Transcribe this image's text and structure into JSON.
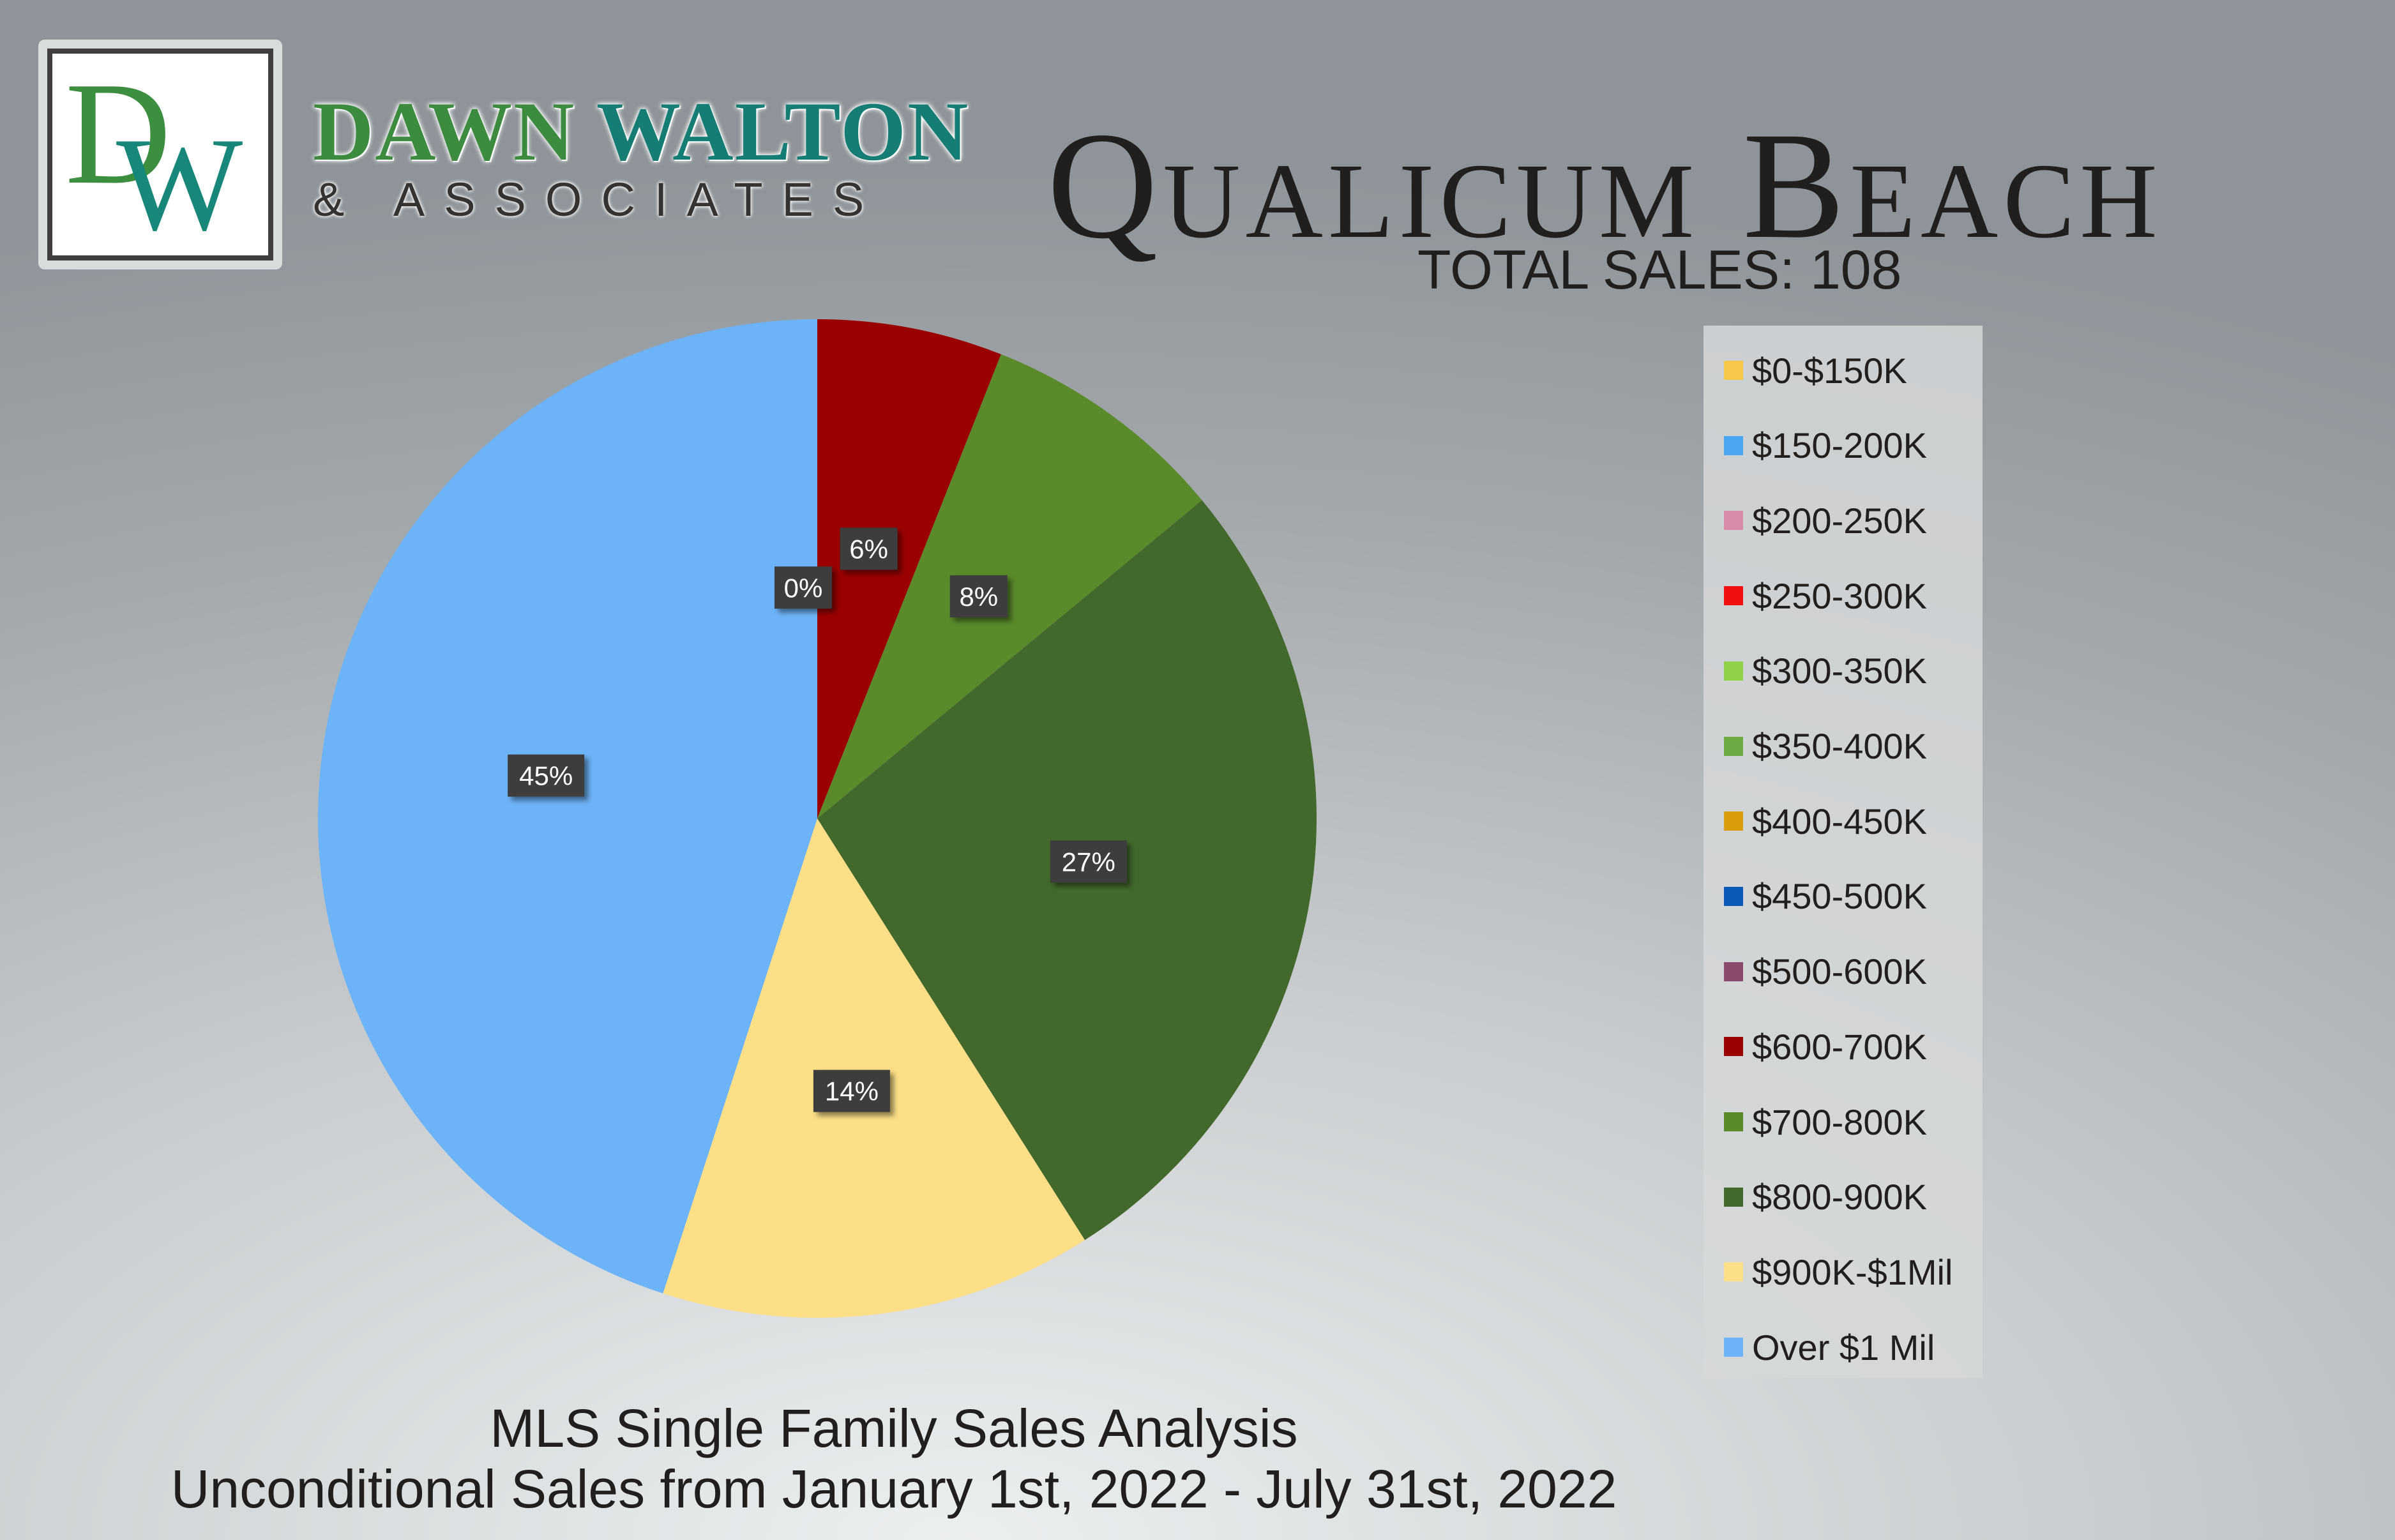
{
  "brand": {
    "logo_letters": [
      "D",
      "W"
    ],
    "name_1": "DAWN",
    "name_2": "WALTON",
    "sub": "& ASSOCIATES"
  },
  "header": {
    "title": "Qualicum Beach",
    "total_sales": "TOTAL SALES: 108"
  },
  "footer": {
    "line1": "MLS Single Family Sales Analysis",
    "line2": "Unconditional Sales from January 1st, 2022 - July 31st, 2022"
  },
  "chart_data": {
    "type": "pie",
    "start_angle_deg": 0,
    "direction": "clockwise",
    "data_label_style": "dark boxes with white text",
    "legend_position": "right",
    "slices": [
      {
        "name": "$0-$150K",
        "value": 0,
        "color": "#f5c84a"
      },
      {
        "name": "$150-200K",
        "value": 0,
        "color": "#4aa5f2"
      },
      {
        "name": "$200-250K",
        "value": 0,
        "color": "#d98aa8"
      },
      {
        "name": "$250-300K",
        "value": 0,
        "color": "#f20f0f"
      },
      {
        "name": "$300-350K",
        "value": 0,
        "color": "#8fd24a"
      },
      {
        "name": "$350-400K",
        "value": 0,
        "color": "#6cab43"
      },
      {
        "name": "$400-450K",
        "value": 0,
        "color": "#d99c0b"
      },
      {
        "name": "$450-500K",
        "value": 0,
        "color": "#0c58b6"
      },
      {
        "name": "$500-600K",
        "value": 0,
        "color": "#8a4a6d"
      },
      {
        "name": "$600-700K",
        "value": 6,
        "color": "#9b0000"
      },
      {
        "name": "$700-800K",
        "value": 8,
        "color": "#5a8a2a"
      },
      {
        "name": "$800-900K",
        "value": 27,
        "color": "#42692b"
      },
      {
        "name": "$900K-$1Mil",
        "value": 14,
        "color": "#fddf87"
      },
      {
        "name": "Over $1 Mil",
        "value": 45,
        "color": "#6db3f8"
      }
    ],
    "data_labels": [
      {
        "text": "0%",
        "slice": "$500-600K"
      },
      {
        "text": "6%",
        "slice": "$600-700K"
      },
      {
        "text": "8%",
        "slice": "$700-800K"
      },
      {
        "text": "27%",
        "slice": "$800-900K"
      },
      {
        "text": "14%",
        "slice": "$900K-$1Mil"
      },
      {
        "text": "45%",
        "slice": "Over $1 Mil"
      }
    ]
  }
}
